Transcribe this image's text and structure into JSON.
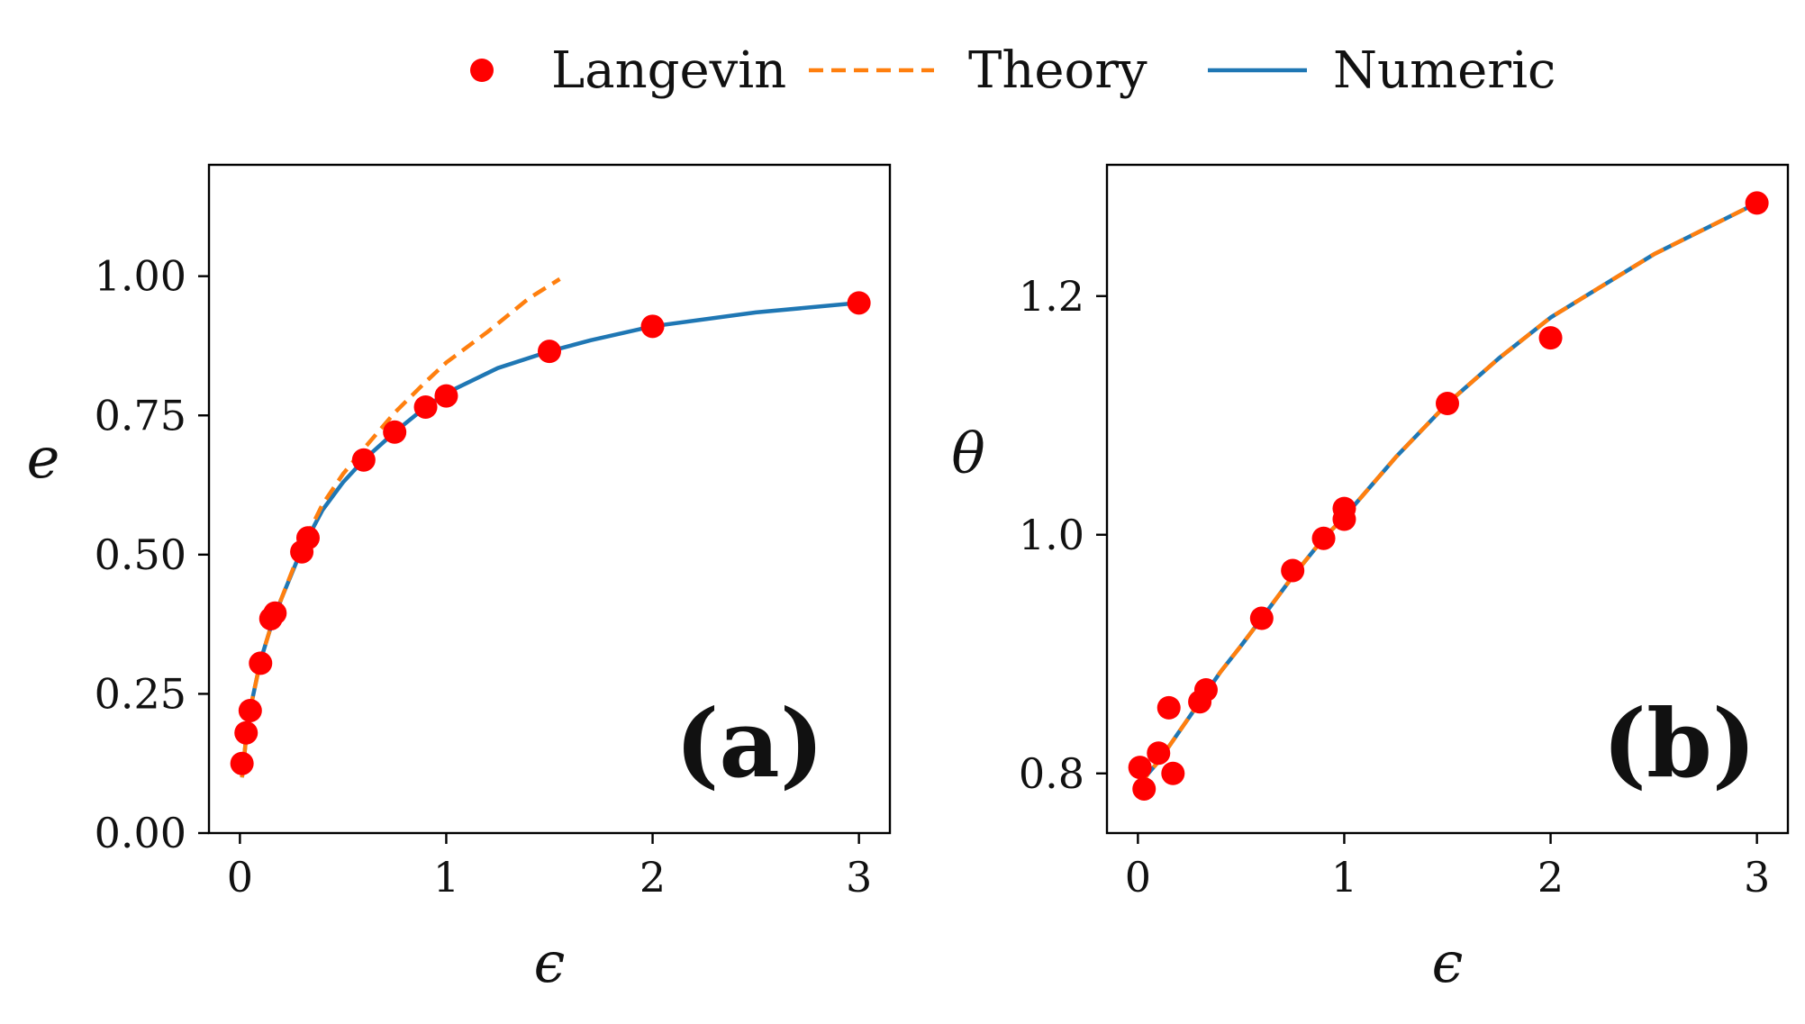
{
  "legend": {
    "entries": [
      {
        "label": "Langevin",
        "color": "#ff0000",
        "kind": "marker"
      },
      {
        "label": "Theory",
        "color": "#ff7f0e",
        "kind": "dashed-line"
      },
      {
        "label": "Numeric",
        "color": "#1f77b4",
        "kind": "line"
      }
    ]
  },
  "chart_data": [
    {
      "type": "line",
      "panel_label": "(a)",
      "xlabel": "ϵ",
      "ylabel": "e",
      "xlim": [
        -0.15,
        3.15
      ],
      "ylim": [
        0.0,
        1.2
      ],
      "xticks": [
        0,
        1,
        2,
        3
      ],
      "xtick_labels": [
        "0",
        "1",
        "2",
        "3"
      ],
      "yticks": [
        0.0,
        0.25,
        0.5,
        0.75,
        1.0
      ],
      "ytick_labels": [
        "0.00",
        "0.25",
        "0.50",
        "0.75",
        "1.00"
      ],
      "series": [
        {
          "name": "Numeric",
          "color": "#1f77b4",
          "style": "solid",
          "x": [
            0.01,
            0.03,
            0.06,
            0.1,
            0.15,
            0.2,
            0.3,
            0.4,
            0.5,
            0.6,
            0.75,
            0.9,
            1.0,
            1.25,
            1.5,
            1.7,
            2.0,
            2.5,
            3.0
          ],
          "y": [
            0.1,
            0.17,
            0.24,
            0.31,
            0.37,
            0.42,
            0.51,
            0.58,
            0.63,
            0.67,
            0.72,
            0.765,
            0.79,
            0.835,
            0.865,
            0.885,
            0.91,
            0.935,
            0.952
          ]
        },
        {
          "name": "Theory",
          "color": "#ff7f0e",
          "style": "dashed",
          "x": [
            0.01,
            0.03,
            0.06,
            0.1,
            0.15,
            0.2,
            0.3,
            0.4,
            0.5,
            0.6,
            0.75,
            0.9,
            1.0,
            1.2,
            1.4,
            1.55
          ],
          "y": [
            0.1,
            0.17,
            0.24,
            0.31,
            0.37,
            0.42,
            0.515,
            0.59,
            0.645,
            0.69,
            0.755,
            0.81,
            0.845,
            0.9,
            0.96,
            0.995
          ]
        },
        {
          "name": "Langevin",
          "color": "#ff0000",
          "style": "marker",
          "x": [
            0.01,
            0.03,
            0.05,
            0.1,
            0.15,
            0.17,
            0.3,
            0.33,
            0.6,
            0.75,
            0.9,
            1.0,
            1.5,
            2.0,
            3.0
          ],
          "y": [
            0.125,
            0.18,
            0.22,
            0.305,
            0.385,
            0.395,
            0.505,
            0.53,
            0.67,
            0.72,
            0.765,
            0.785,
            0.865,
            0.91,
            0.952
          ]
        }
      ]
    },
    {
      "type": "line",
      "panel_label": "(b)",
      "xlabel": "ϵ",
      "ylabel": "θ",
      "xlim": [
        -0.15,
        3.15
      ],
      "ylim": [
        0.75,
        1.31
      ],
      "xticks": [
        0,
        1,
        2,
        3
      ],
      "xtick_labels": [
        "0",
        "1",
        "2",
        "3"
      ],
      "yticks": [
        0.8,
        1.0,
        1.2
      ],
      "ytick_labels": [
        "0.8",
        "1.0",
        "1.2"
      ],
      "series": [
        {
          "name": "Numeric",
          "color": "#1f77b4",
          "style": "solid",
          "x": [
            0.01,
            0.05,
            0.1,
            0.2,
            0.3,
            0.4,
            0.5,
            0.6,
            0.75,
            0.9,
            1.0,
            1.25,
            1.5,
            1.75,
            2.0,
            2.5,
            3.0
          ],
          "y": [
            0.79,
            0.8,
            0.81,
            0.835,
            0.86,
            0.885,
            0.907,
            0.93,
            0.965,
            0.997,
            1.015,
            1.065,
            1.11,
            1.148,
            1.182,
            1.235,
            1.278
          ]
        },
        {
          "name": "Theory",
          "color": "#ff7f0e",
          "style": "dashed",
          "x": [
            0.01,
            0.05,
            0.1,
            0.2,
            0.3,
            0.4,
            0.5,
            0.6,
            0.75,
            0.9,
            1.0,
            1.25,
            1.5,
            1.75,
            2.0,
            2.5,
            3.0
          ],
          "y": [
            0.79,
            0.8,
            0.81,
            0.835,
            0.86,
            0.885,
            0.907,
            0.93,
            0.965,
            0.997,
            1.015,
            1.065,
            1.11,
            1.148,
            1.182,
            1.235,
            1.278
          ]
        },
        {
          "name": "Langevin",
          "color": "#ff0000",
          "style": "marker",
          "x": [
            0.01,
            0.03,
            0.1,
            0.15,
            0.17,
            0.3,
            0.33,
            0.6,
            0.75,
            0.9,
            1.0,
            1.0,
            1.5,
            2.0,
            3.0
          ],
          "y": [
            0.805,
            0.787,
            0.817,
            0.855,
            0.8,
            0.86,
            0.87,
            0.93,
            0.97,
            0.997,
            1.013,
            1.022,
            1.11,
            1.165,
            1.278
          ]
        }
      ]
    }
  ]
}
